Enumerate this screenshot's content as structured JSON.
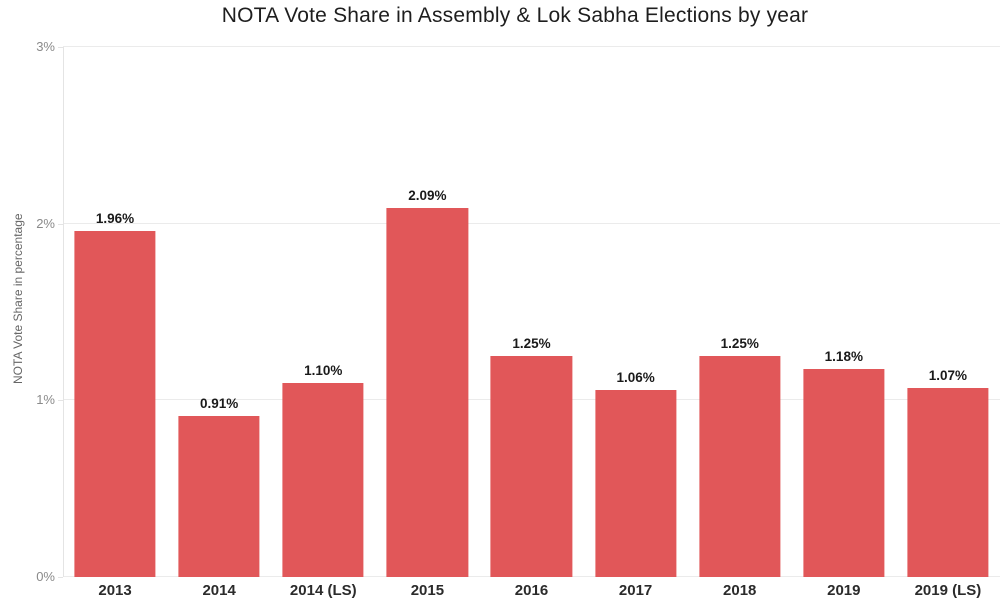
{
  "chart_data": {
    "type": "bar",
    "title": "NOTA Vote Share in Assembly & Lok Sabha Elections by year",
    "categories": [
      "2013",
      "2014",
      "2014 (LS)",
      "2015",
      "2016",
      "2017",
      "2018",
      "2019",
      "2019 (LS)"
    ],
    "values": [
      1.96,
      0.91,
      1.1,
      2.09,
      1.25,
      1.06,
      1.25,
      1.18,
      1.07
    ],
    "value_labels": [
      "1.96%",
      "0.91%",
      "1.10%",
      "2.09%",
      "1.25%",
      "1.06%",
      "1.25%",
      "1.18%",
      "1.07%"
    ],
    "xlabel": "",
    "ylabel": "NOTA Vote Share in percentage",
    "ylim": [
      0,
      3
    ],
    "yticks": [
      {
        "value": 0,
        "label": "0%"
      },
      {
        "value": 1,
        "label": "1%"
      },
      {
        "value": 2,
        "label": "2%"
      },
      {
        "value": 3,
        "label": "3%"
      }
    ],
    "grid": true,
    "legend": "none",
    "colors": {
      "bar": "#e15759",
      "grid": "#ebebeb",
      "axis_line": "#e4e4e4",
      "tick_label": "#8a8a8a",
      "axis_title": "#666666",
      "category_label": "#2b2b2b",
      "value_label": "#1a1a1a",
      "title": "#1e1e1e",
      "background": "#ffffff"
    }
  }
}
